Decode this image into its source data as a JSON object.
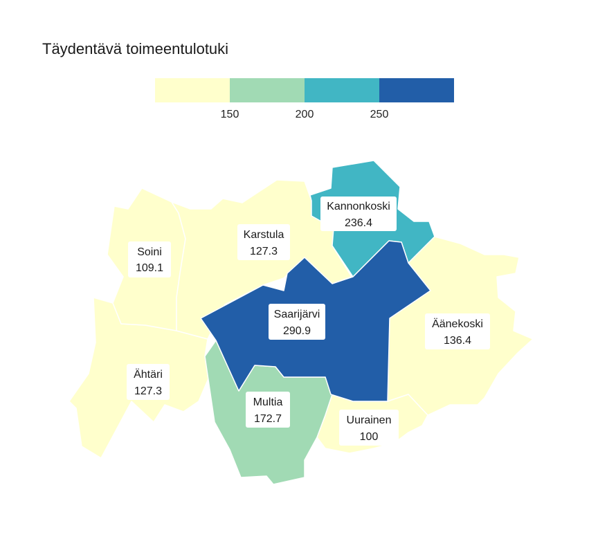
{
  "title": "Täydentävä toimeentulotuki",
  "legend": {
    "bins": [
      {
        "color": "#ffffcc"
      },
      {
        "color": "#a1dab4"
      },
      {
        "color": "#41b6c4"
      },
      {
        "color": "#225ea8"
      }
    ],
    "ticks": [
      "150",
      "200",
      "250"
    ]
  },
  "regions": [
    {
      "name": "Soini",
      "value": "109.1",
      "color": "#ffffcc"
    },
    {
      "name": "Karstula",
      "value": "127.3",
      "color": "#ffffcc"
    },
    {
      "name": "Kannonkoski",
      "value": "236.4",
      "color": "#41b6c4"
    },
    {
      "name": "Saarijärvi",
      "value": "290.9",
      "color": "#225ea8"
    },
    {
      "name": "Äänekoski",
      "value": "136.4",
      "color": "#ffffcc"
    },
    {
      "name": "Ähtäri",
      "value": "127.3",
      "color": "#ffffcc"
    },
    {
      "name": "Multia",
      "value": "172.7",
      "color": "#a1dab4"
    },
    {
      "name": "Uurainen",
      "value": "100",
      "color": "#ffffcc"
    }
  ]
}
